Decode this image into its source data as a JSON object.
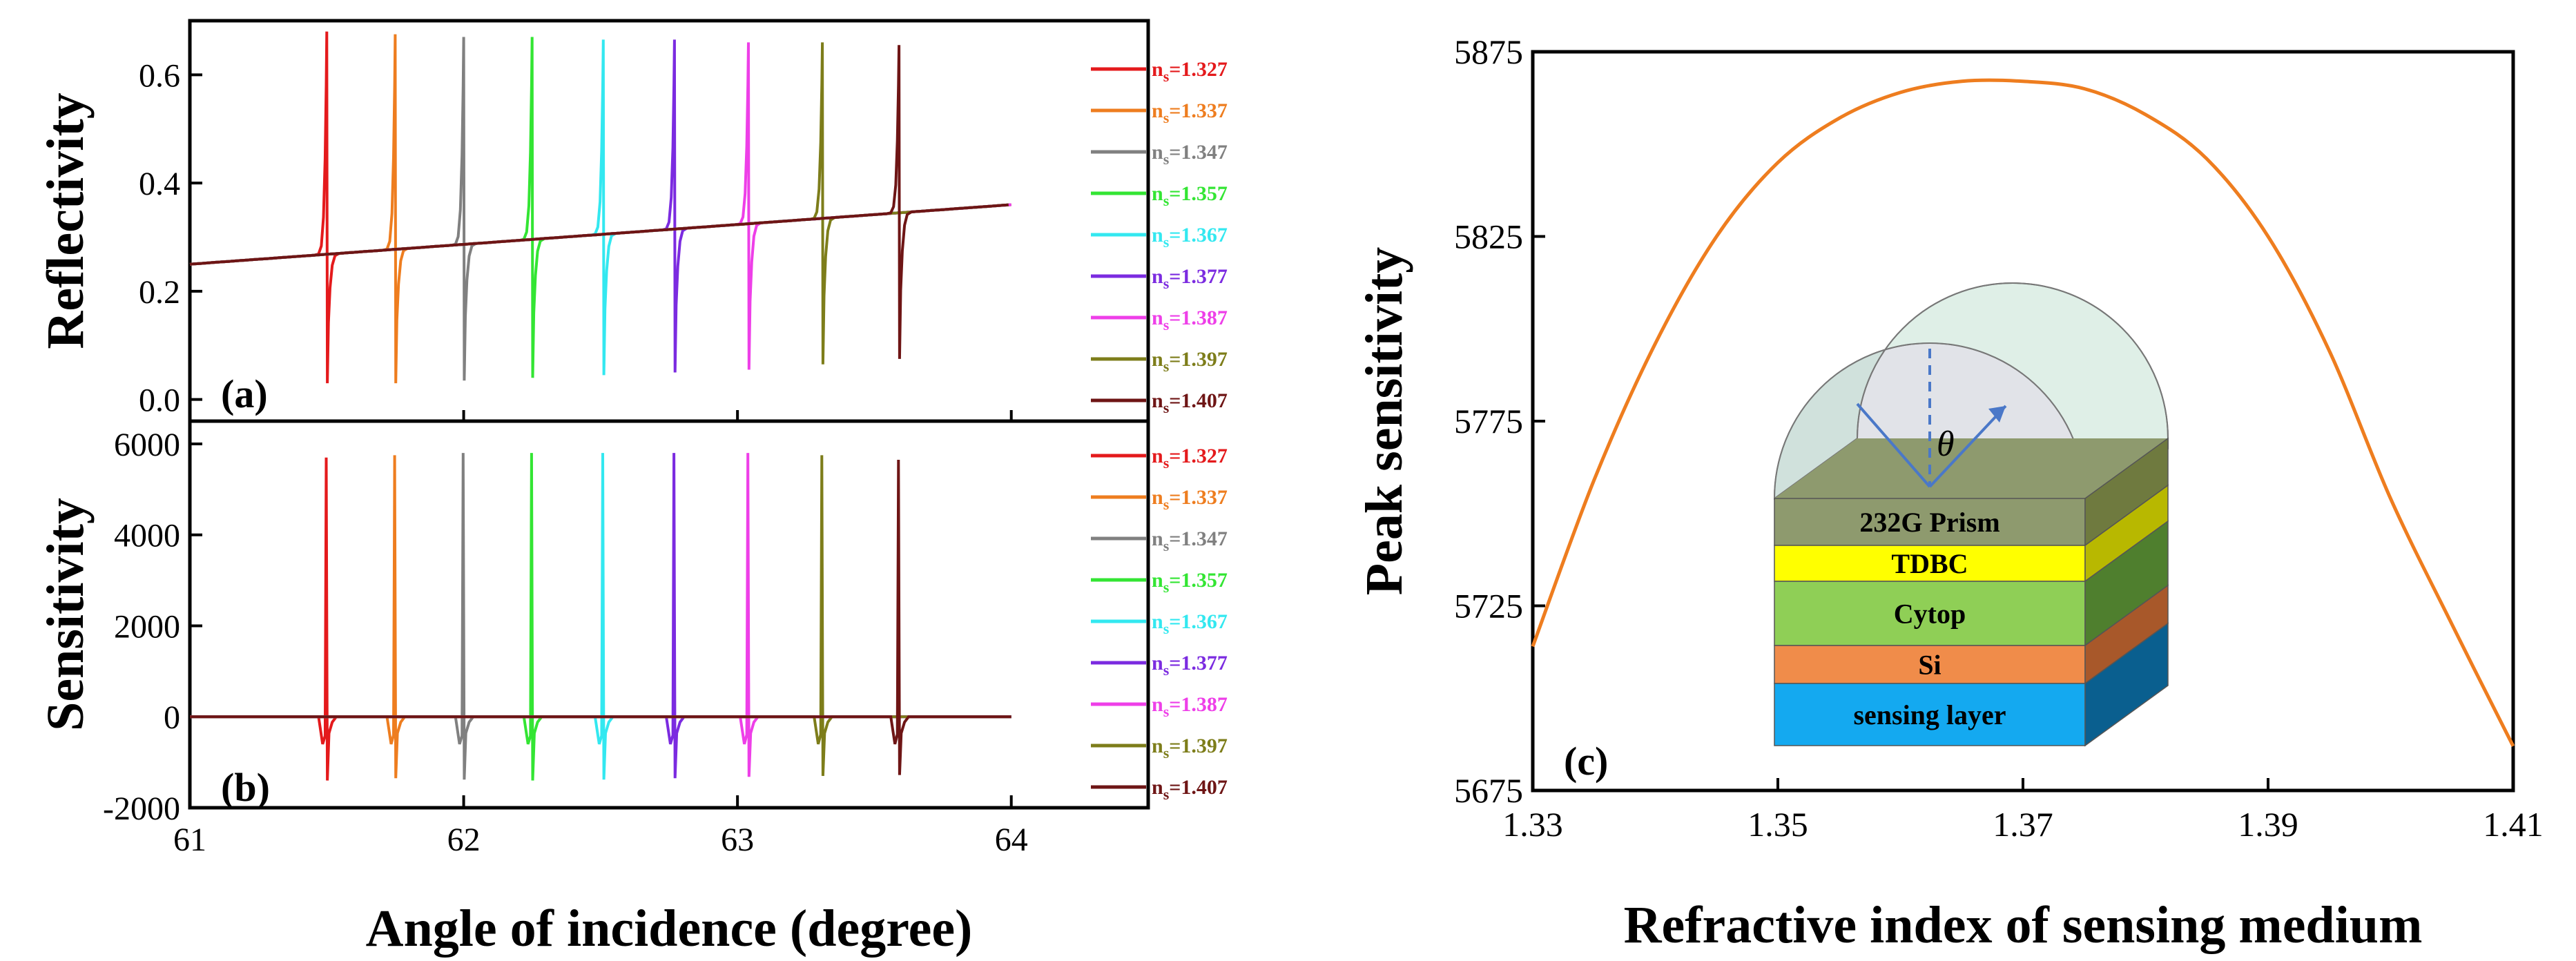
{
  "chart_data": [
    {
      "panel": "a",
      "type": "line",
      "panel_label": "(a)",
      "xlabel": "",
      "ylabel": "Reflectivity",
      "xlim": [
        61,
        64.5
      ],
      "ylim": [
        -0.04,
        0.7
      ],
      "yticks": [
        0.0,
        0.2,
        0.4,
        0.6
      ],
      "ytick_labels": [
        "0.0",
        "0.2",
        "0.4",
        "0.6"
      ],
      "baseline": {
        "x_start": 61.0,
        "y_start": 0.25,
        "x_end": 64.0,
        "y_end": 0.36
      },
      "resonance_half_width_deg": 0.018,
      "series": [
        {
          "name": "n",
          "subscript": "s",
          "value": "=1.327",
          "color": "#e41a1c",
          "center": 61.5,
          "peak": 0.68,
          "dip": 0.03
        },
        {
          "name": "n",
          "subscript": "s",
          "value": "=1.337",
          "color": "#ee7d1f",
          "center": 61.75,
          "peak": 0.675,
          "dip": 0.03
        },
        {
          "name": "n",
          "subscript": "s",
          "value": "=1.347",
          "color": "#808080",
          "center": 62.0,
          "peak": 0.67,
          "dip": 0.035
        },
        {
          "name": "n",
          "subscript": "s",
          "value": "=1.357",
          "color": "#33e533",
          "center": 62.25,
          "peak": 0.67,
          "dip": 0.04
        },
        {
          "name": "n",
          "subscript": "s",
          "value": "=1.367",
          "color": "#33e8f0",
          "center": 62.51,
          "peak": 0.665,
          "dip": 0.045
        },
        {
          "name": "n",
          "subscript": "s",
          "value": "=1.377",
          "color": "#7b2be0",
          "center": 62.77,
          "peak": 0.665,
          "dip": 0.05
        },
        {
          "name": "n",
          "subscript": "s",
          "value": "=1.387",
          "color": "#ee3fe8",
          "center": 63.04,
          "peak": 0.66,
          "dip": 0.055
        },
        {
          "name": "n",
          "subscript": "s",
          "value": "=1.397",
          "color": "#7d7d1a",
          "center": 63.31,
          "peak": 0.66,
          "dip": 0.065
        },
        {
          "name": "n",
          "subscript": "s",
          "value": "=1.407",
          "color": "#6e1515",
          "center": 63.59,
          "peak": 0.655,
          "dip": 0.075
        }
      ]
    },
    {
      "panel": "b",
      "type": "line",
      "panel_label": "(b)",
      "xlabel": "Angle of incidence (degree)",
      "ylabel": "Sensitivity",
      "xlim": [
        61,
        64.5
      ],
      "ylim": [
        -2000,
        6500
      ],
      "xticks": [
        61,
        62,
        63,
        64
      ],
      "xtick_labels": [
        "61",
        "62",
        "63",
        "64"
      ],
      "yticks": [
        -2000,
        0,
        2000,
        4000,
        6000
      ],
      "ytick_labels": [
        "-2000",
        "0",
        "2000",
        "4000",
        "6000"
      ],
      "baseline_value": 0,
      "series": [
        {
          "name": "n",
          "subscript": "s",
          "value": "=1.327",
          "color": "#e41a1c",
          "center": 61.5,
          "peak": 5700,
          "dip": -1400,
          "shoulder": -600
        },
        {
          "name": "n",
          "subscript": "s",
          "value": "=1.337",
          "color": "#ee7d1f",
          "center": 61.75,
          "peak": 5750,
          "dip": -1350,
          "shoulder": -600
        },
        {
          "name": "n",
          "subscript": "s",
          "value": "=1.347",
          "color": "#808080",
          "center": 62.0,
          "peak": 5800,
          "dip": -1380,
          "shoulder": -600
        },
        {
          "name": "n",
          "subscript": "s",
          "value": "=1.357",
          "color": "#33e533",
          "center": 62.25,
          "peak": 5800,
          "dip": -1400,
          "shoulder": -600
        },
        {
          "name": "n",
          "subscript": "s",
          "value": "=1.367",
          "color": "#33e8f0",
          "center": 62.51,
          "peak": 5800,
          "dip": -1380,
          "shoulder": -600
        },
        {
          "name": "n",
          "subscript": "s",
          "value": "=1.377",
          "color": "#7b2be0",
          "center": 62.77,
          "peak": 5800,
          "dip": -1350,
          "shoulder": -600
        },
        {
          "name": "n",
          "subscript": "s",
          "value": "=1.387",
          "color": "#ee3fe8",
          "center": 63.04,
          "peak": 5800,
          "dip": -1320,
          "shoulder": -600
        },
        {
          "name": "n",
          "subscript": "s",
          "value": "=1.397",
          "color": "#7d7d1a",
          "center": 63.31,
          "peak": 5750,
          "dip": -1300,
          "shoulder": -600
        },
        {
          "name": "n",
          "subscript": "s",
          "value": "=1.407",
          "color": "#6e1515",
          "center": 63.59,
          "peak": 5650,
          "dip": -1280,
          "shoulder": -600
        }
      ]
    },
    {
      "panel": "c",
      "type": "line",
      "panel_label": "(c)",
      "xlabel": "Refractive index of sensing medium",
      "ylabel": "Peak sensitivity",
      "xlim": [
        1.33,
        1.41
      ],
      "ylim": [
        5675,
        5875
      ],
      "xticks": [
        1.33,
        1.35,
        1.37,
        1.39,
        1.41
      ],
      "xtick_labels": [
        "1.33",
        "1.35",
        "1.37",
        "1.39",
        "1.41"
      ],
      "yticks": [
        5675,
        5725,
        5775,
        5825,
        5875
      ],
      "ytick_labels": [
        "5675",
        "5725",
        "5775",
        "5825",
        "5875"
      ],
      "series": [
        {
          "color": "#ee7d1f",
          "x": [
            1.33,
            1.335,
            1.34,
            1.345,
            1.35,
            1.355,
            1.36,
            1.365,
            1.37,
            1.375,
            1.38,
            1.385,
            1.39,
            1.395,
            1.4,
            1.405,
            1.41
          ],
          "y": [
            5714,
            5759,
            5796,
            5825,
            5845,
            5857,
            5864,
            5867,
            5867,
            5865,
            5858,
            5846,
            5825,
            5794,
            5754,
            5720,
            5687
          ]
        }
      ],
      "inset": {
        "layers": [
          {
            "label": "232G Prism",
            "color": "#8e9a6e",
            "text_color": "#000000"
          },
          {
            "label": "TDBC",
            "color": "#ffff00",
            "text_color": "#000000"
          },
          {
            "label": "Cytop",
            "color": "#8fcf56",
            "text_color": "#000000"
          },
          {
            "label": "Si",
            "color": "#f08c4a",
            "text_color": "#000000"
          },
          {
            "label": "sensing layer",
            "color": "#14a9f0",
            "text_color": "#000000"
          }
        ],
        "angle_symbol": "θ"
      }
    }
  ]
}
